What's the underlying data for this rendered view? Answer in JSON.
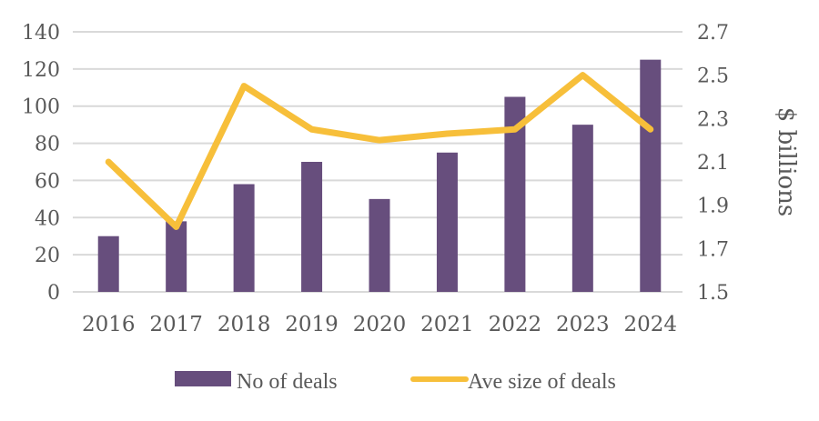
{
  "chart_data": {
    "type": "bar",
    "title": "",
    "categories": [
      "2016",
      "2017",
      "2018",
      "2019",
      "2020",
      "2021",
      "2022",
      "2023",
      "2024"
    ],
    "series": [
      {
        "name": "No of deals",
        "type": "bar",
        "axis": "left",
        "color": "#674e7d",
        "values": [
          30,
          38,
          58,
          70,
          50,
          75,
          105,
          90,
          125
        ]
      },
      {
        "name": "Ave size of deals",
        "type": "line",
        "axis": "right",
        "color": "#f7bf3a",
        "values": [
          2.1,
          1.8,
          2.45,
          2.25,
          2.2,
          2.23,
          2.25,
          2.5,
          2.25
        ]
      }
    ],
    "xlabel": "",
    "ylabel": "",
    "y2label": "$ billions",
    "ylim": [
      0,
      140
    ],
    "y2lim": [
      1.5,
      2.7
    ],
    "yticks": [
      "0",
      "20",
      "40",
      "60",
      "80",
      "100",
      "120",
      "140"
    ],
    "y2ticks": [
      "1.5",
      "1.7",
      "1.9",
      "2.1",
      "2.3",
      "2.5",
      "2.7"
    ],
    "grid": true,
    "legend": "bottom",
    "gridcolor": "#d9d9d9"
  }
}
